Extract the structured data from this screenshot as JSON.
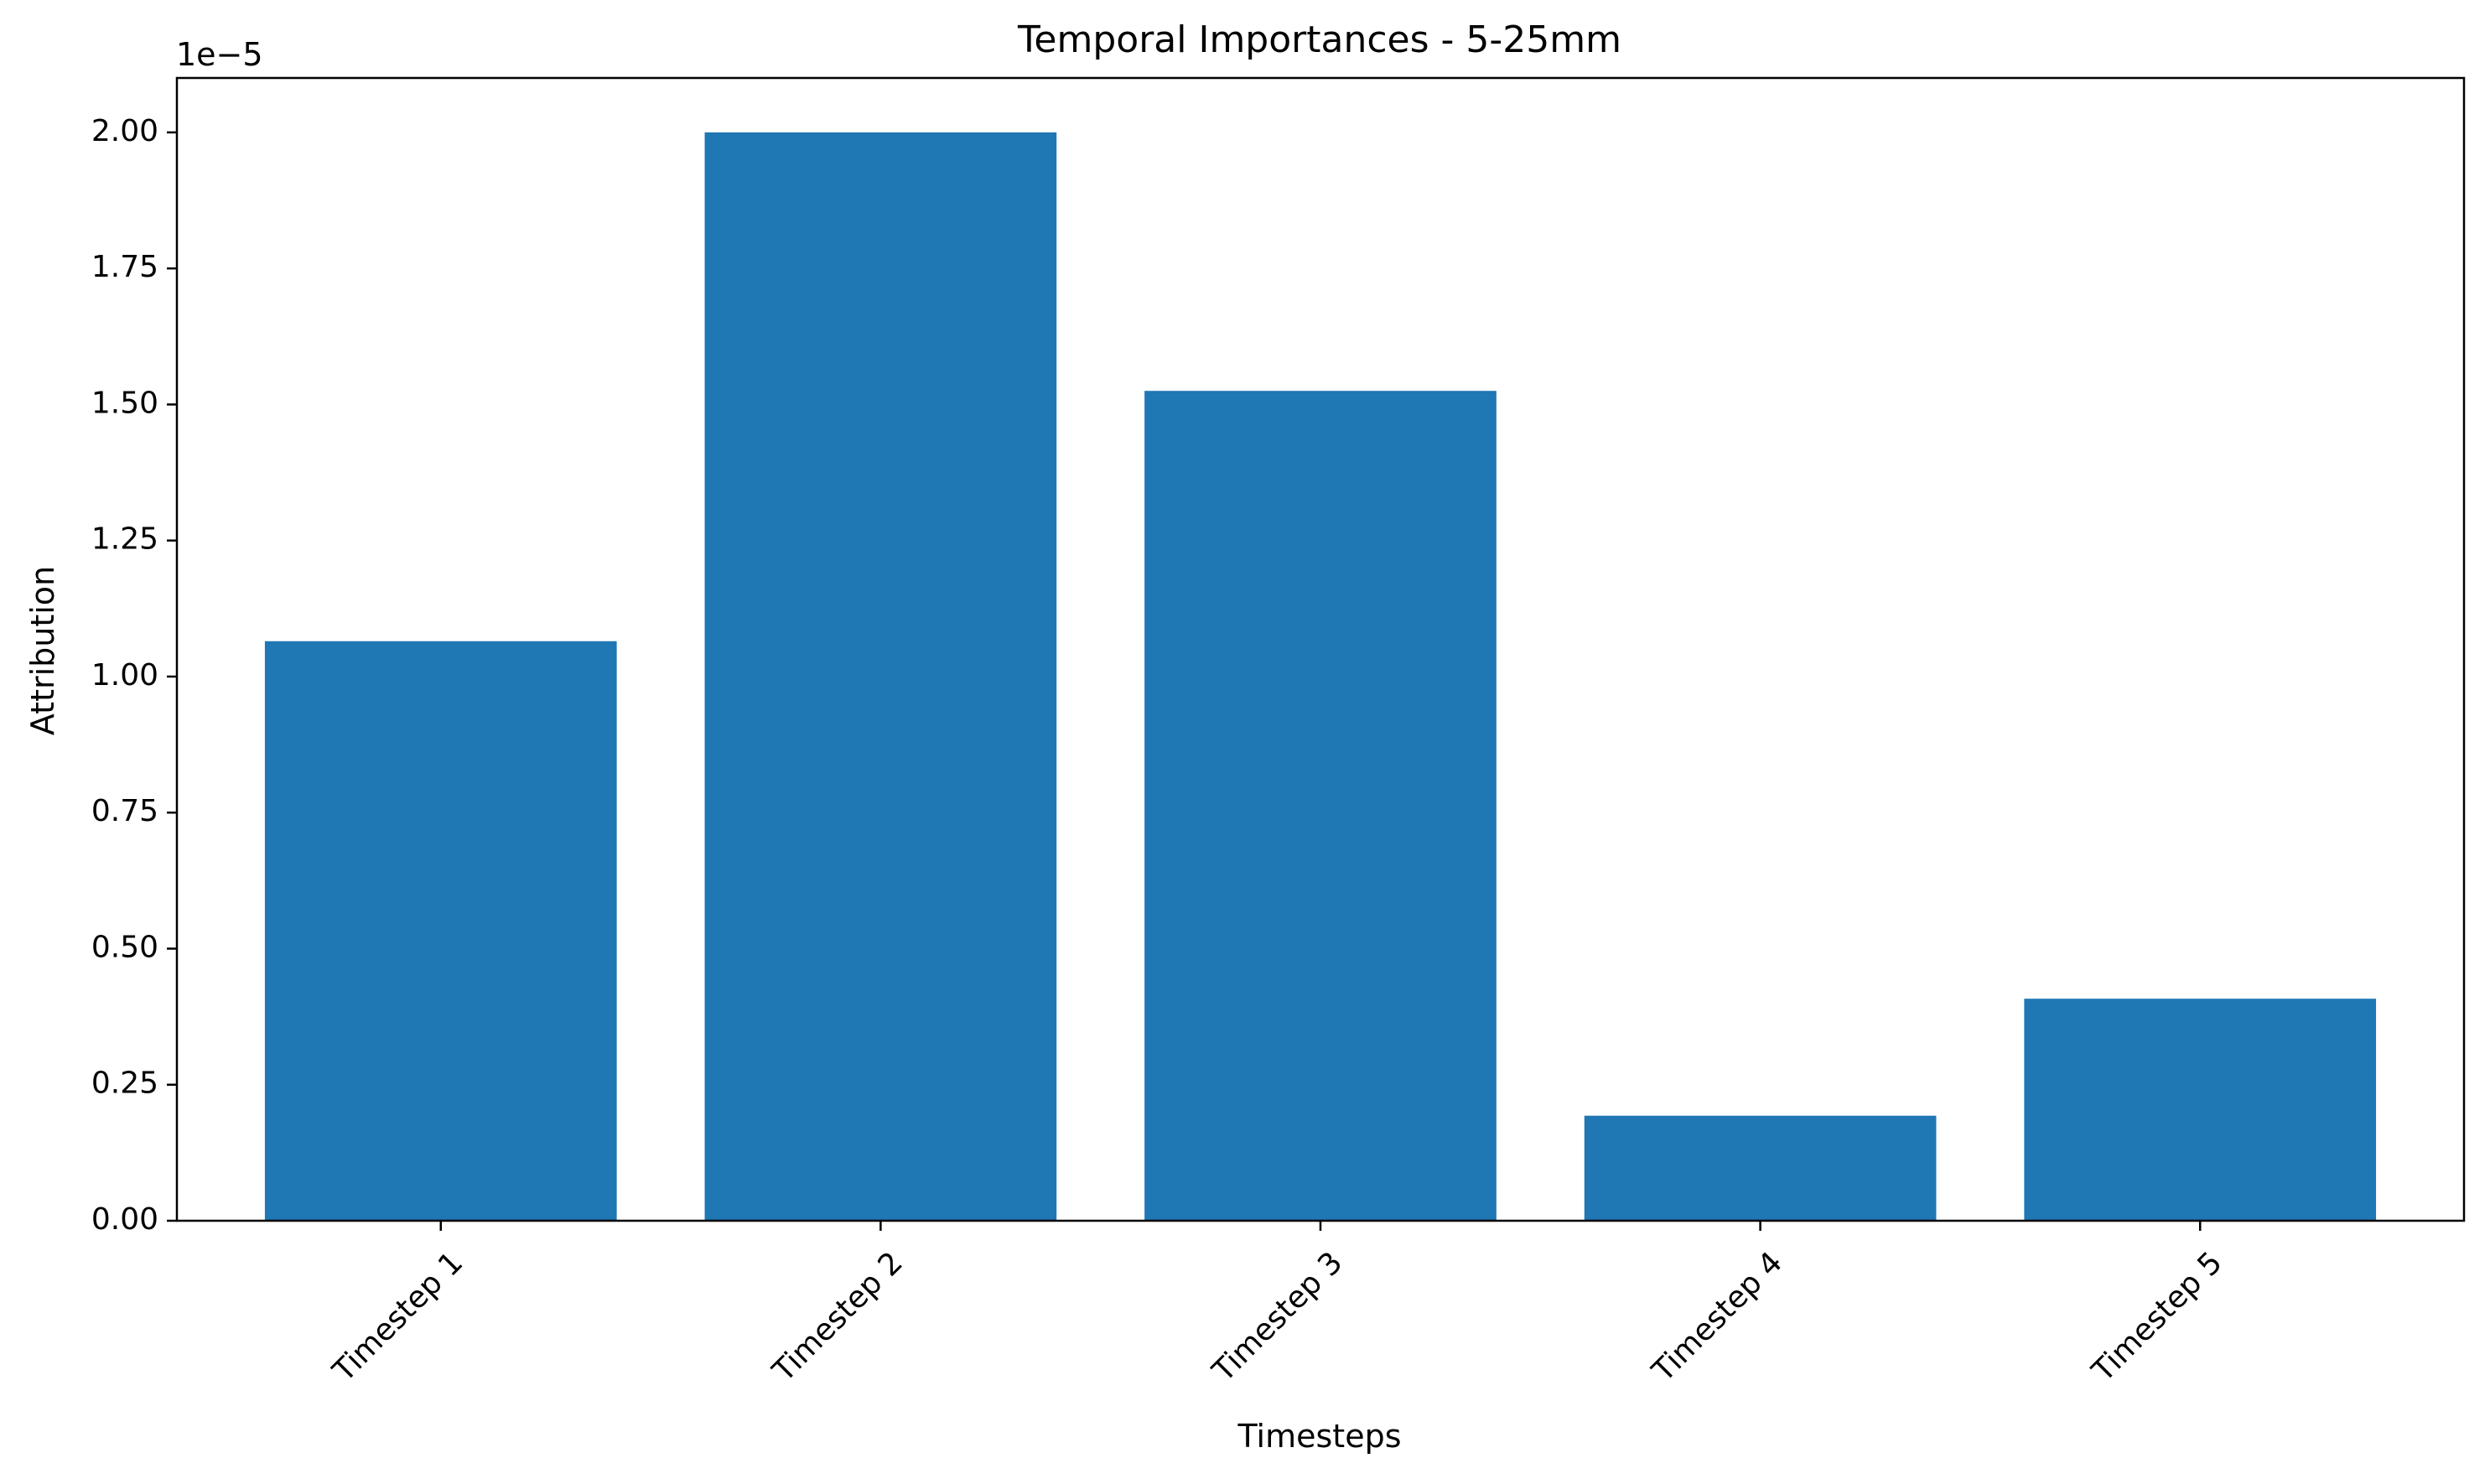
{
  "chart_data": {
    "type": "bar",
    "title": "Temporal Importances - 5-25mm",
    "xlabel": "Timesteps",
    "ylabel": "Attribution",
    "offset_text": "1e−5",
    "scale": 1e-05,
    "categories": [
      "Timestep 1",
      "Timestep 2",
      "Timestep 3",
      "Timestep 4",
      "Timestep 5"
    ],
    "values": [
      1.065e-05,
      2e-05,
      1.525e-05,
      1.93e-06,
      4.08e-06
    ],
    "ylim": [
      0,
      2.1e-05
    ],
    "yticks": [
      0,
      2.5e-06,
      5e-06,
      7.5e-06,
      1e-05,
      1.25e-05,
      1.5e-05,
      1.75e-05,
      2e-05
    ],
    "ytick_labels": [
      "0.00",
      "0.25",
      "0.50",
      "0.75",
      "1.00",
      "1.25",
      "1.50",
      "1.75",
      "2.00"
    ],
    "bar_color": "#1f77b4",
    "grid": false,
    "legend": "none",
    "xtick_rotation_deg": 45
  }
}
